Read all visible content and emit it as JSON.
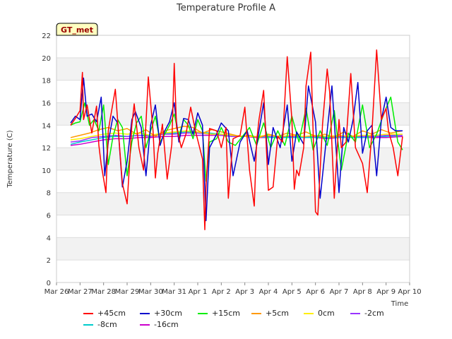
{
  "chart_data": {
    "type": "line",
    "title": "Temperature Profile A",
    "xlabel": "Time",
    "ylabel": "Temperature (C)",
    "ylim": [
      0,
      22
    ],
    "yticks": [
      0,
      2,
      4,
      6,
      8,
      10,
      12,
      14,
      16,
      18,
      20,
      22
    ],
    "xlim": [
      0,
      15
    ],
    "xtick_labels": [
      "Mar 26",
      "Mar 27",
      "Mar 28",
      "Mar 29",
      "Mar 30",
      "Mar 31",
      "Apr 1",
      "Apr 2",
      "Apr 3",
      "Apr 4",
      "Apr 5",
      "Apr 6",
      "Apr 7",
      "Apr 8",
      "Apr 9",
      "Apr 10"
    ],
    "annotation": "GT_met",
    "grid_bands": true,
    "legend_position": "bottom",
    "series": [
      {
        "name": "+45cm",
        "color": "#ff0000",
        "x": [
          0.6,
          0.8,
          1.0,
          1.1,
          1.15,
          1.3,
          1.5,
          1.7,
          1.8,
          1.9,
          2.1,
          2.2,
          2.3,
          2.5,
          2.7,
          2.8,
          3.0,
          3.2,
          3.3,
          3.5,
          3.7,
          3.9,
          4.1,
          4.2,
          4.3,
          4.5,
          4.7,
          4.9,
          5.0,
          5.1,
          5.3,
          5.5,
          5.7,
          5.9,
          6.2,
          6.3,
          6.35,
          6.5,
          6.8,
          7.0,
          7.2,
          7.3,
          7.5,
          7.8,
          8.0,
          8.2,
          8.4,
          8.5,
          8.6,
          8.8,
          9.0,
          9.2,
          9.4,
          9.6,
          9.8,
          10.0,
          10.1,
          10.2,
          10.3,
          10.5,
          10.6,
          10.8,
          11.0,
          11.1,
          11.3,
          11.5,
          11.6,
          11.8,
          12.0,
          12.1,
          12.3,
          12.5,
          12.7,
          13.0,
          13.2,
          13.4,
          13.6,
          13.8,
          14.0,
          14.1,
          14.3,
          14.5,
          14.7
        ],
        "values": [
          14.0,
          14.6,
          15.3,
          18.7,
          14.5,
          15.8,
          13.3,
          15.7,
          12.2,
          10.5,
          8.0,
          13.5,
          14.8,
          17.2,
          11.5,
          8.8,
          7.0,
          14.0,
          15.9,
          12.0,
          10.0,
          18.3,
          13.5,
          9.3,
          11.5,
          14.1,
          9.2,
          12.3,
          19.5,
          13.8,
          12.0,
          13.2,
          15.6,
          13.5,
          11.0,
          4.7,
          8.5,
          13.7,
          13.5,
          12.0,
          13.8,
          7.5,
          12.8,
          13.1,
          15.6,
          10.0,
          6.8,
          12.5,
          14.5,
          17.1,
          8.2,
          8.5,
          13.0,
          12.5,
          20.1,
          14.5,
          8.3,
          10.0,
          9.5,
          12.0,
          17.5,
          20.5,
          6.3,
          6.0,
          14.1,
          19.0,
          17.0,
          7.5,
          14.5,
          12.0,
          12.5,
          18.6,
          12.0,
          10.6,
          8.0,
          13.5,
          20.7,
          14.5,
          15.5,
          13.5,
          12.0,
          9.5,
          13.0
        ]
      },
      {
        "name": "+30cm",
        "color": "#0000cc",
        "x": [
          0.6,
          0.8,
          1.0,
          1.15,
          1.3,
          1.5,
          1.7,
          1.9,
          2.05,
          2.2,
          2.4,
          2.6,
          2.8,
          3.0,
          3.2,
          3.35,
          3.6,
          3.8,
          4.0,
          4.2,
          4.4,
          4.6,
          4.8,
          5.0,
          5.2,
          5.4,
          5.6,
          5.8,
          6.0,
          6.2,
          6.35,
          6.5,
          6.8,
          7.0,
          7.3,
          7.5,
          7.8,
          8.1,
          8.4,
          8.6,
          8.8,
          9.0,
          9.2,
          9.5,
          9.8,
          10.0,
          10.2,
          10.5,
          10.7,
          11.0,
          11.2,
          11.5,
          11.7,
          12.0,
          12.2,
          12.4,
          12.6,
          12.8,
          13.0,
          13.2,
          13.4,
          13.6,
          13.8,
          14.0,
          14.2,
          14.4,
          14.7
        ],
        "values": [
          14.2,
          14.8,
          14.5,
          18.2,
          14.8,
          15.0,
          14.3,
          16.5,
          9.5,
          12.5,
          14.8,
          14.2,
          8.5,
          10.8,
          14.5,
          15.2,
          13.8,
          9.5,
          14.0,
          15.8,
          12.2,
          13.5,
          14.3,
          16.0,
          12.5,
          14.6,
          14.5,
          13.2,
          15.1,
          14.0,
          5.5,
          12.0,
          13.2,
          14.2,
          13.5,
          9.5,
          12.5,
          13.5,
          10.8,
          13.5,
          16.0,
          10.5,
          13.8,
          12.0,
          15.8,
          10.8,
          13.4,
          12.3,
          17.5,
          14.3,
          7.5,
          13.5,
          17.5,
          8.0,
          13.8,
          12.5,
          14.5,
          17.8,
          11.5,
          13.5,
          14.0,
          9.5,
          14.5,
          16.5,
          13.8,
          13.5,
          13.5
        ]
      },
      {
        "name": "+15cm",
        "color": "#00ee00",
        "x": [
          0.6,
          0.8,
          1.0,
          1.2,
          1.4,
          1.6,
          1.8,
          2.0,
          2.2,
          2.4,
          2.6,
          2.8,
          3.0,
          3.2,
          3.4,
          3.6,
          3.8,
          4.0,
          4.2,
          4.4,
          4.6,
          4.8,
          5.0,
          5.2,
          5.4,
          5.6,
          5.8,
          6.0,
          6.2,
          6.35,
          6.5,
          6.8,
          7.0,
          7.3,
          7.6,
          7.9,
          8.2,
          8.5,
          8.8,
          9.1,
          9.4,
          9.7,
          10.0,
          10.3,
          10.6,
          10.9,
          11.2,
          11.5,
          11.8,
          12.1,
          12.4,
          12.7,
          13.0,
          13.3,
          13.6,
          13.9,
          14.2,
          14.5,
          14.7
        ],
        "values": [
          14.0,
          14.2,
          14.3,
          16.0,
          14.0,
          14.5,
          13.5,
          15.8,
          10.5,
          13.0,
          14.5,
          13.8,
          9.5,
          12.5,
          14.2,
          14.8,
          12.0,
          13.5,
          14.8,
          12.5,
          13.2,
          14.0,
          15.0,
          13.0,
          14.5,
          14.0,
          12.8,
          14.5,
          13.5,
          9.0,
          12.5,
          12.8,
          13.8,
          12.5,
          12.2,
          13.0,
          13.8,
          12.2,
          14.2,
          12.0,
          13.5,
          12.2,
          14.8,
          12.5,
          15.5,
          11.8,
          13.5,
          12.2,
          15.3,
          10.0,
          13.3,
          12.5,
          15.8,
          12.0,
          13.2,
          15.0,
          16.5,
          12.5,
          11.8
        ]
      },
      {
        "name": "+5cm",
        "color": "#ff9900",
        "x": [
          0.6,
          1.0,
          1.4,
          1.8,
          2.2,
          2.6,
          3.0,
          3.4,
          3.8,
          4.2,
          4.6,
          5.0,
          5.4,
          5.8,
          6.2,
          6.6,
          7.0,
          7.4,
          7.8,
          8.2,
          8.6,
          9.0,
          9.4,
          9.8,
          10.2,
          10.6,
          11.0,
          11.4,
          11.8,
          12.2,
          12.6,
          13.0,
          13.4,
          13.8,
          14.2,
          14.7
        ],
        "values": [
          12.9,
          13.1,
          13.3,
          13.6,
          13.8,
          13.5,
          13.7,
          13.2,
          13.6,
          13.0,
          13.5,
          13.7,
          13.9,
          13.8,
          13.3,
          13.6,
          13.4,
          13.2,
          13.0,
          13.1,
          12.9,
          13.2,
          13.0,
          13.3,
          13.1,
          13.4,
          13.0,
          13.2,
          12.9,
          13.4,
          13.0,
          13.5,
          13.2,
          13.6,
          13.3,
          13.5
        ]
      },
      {
        "name": "0cm",
        "color": "#ffee00",
        "x": [
          0.6,
          1.0,
          1.5,
          2.0,
          2.5,
          3.0,
          3.5,
          4.0,
          4.5,
          5.0,
          5.5,
          6.0,
          6.5,
          7.0,
          7.5,
          8.0,
          8.5,
          9.0,
          9.5,
          10.0,
          10.5,
          11.0,
          11.5,
          12.0,
          12.5,
          13.0,
          13.5,
          14.0,
          14.7
        ],
        "values": [
          12.7,
          12.8,
          13.0,
          13.2,
          13.3,
          13.2,
          13.3,
          13.1,
          13.3,
          13.4,
          13.5,
          13.4,
          13.2,
          13.2,
          13.1,
          13.0,
          13.0,
          13.1,
          13.0,
          13.1,
          13.0,
          13.1,
          13.0,
          13.1,
          13.0,
          13.1,
          13.1,
          13.2,
          13.2
        ]
      },
      {
        "name": "-2cm",
        "color": "#9933ff",
        "x": [
          0.6,
          1.0,
          1.5,
          2.0,
          2.5,
          3.0,
          3.5,
          4.0,
          4.5,
          5.0,
          5.5,
          6.0,
          6.5,
          7.0,
          7.5,
          8.0,
          8.5,
          9.0,
          9.5,
          10.0,
          10.5,
          11.0,
          11.5,
          12.0,
          12.5,
          13.0,
          13.5,
          14.0,
          14.7
        ],
        "values": [
          12.5,
          12.6,
          12.9,
          13.0,
          13.1,
          13.0,
          13.1,
          13.0,
          13.2,
          13.2,
          13.3,
          13.3,
          13.2,
          13.1,
          13.0,
          13.0,
          13.0,
          13.0,
          13.0,
          13.0,
          13.0,
          13.0,
          13.0,
          13.0,
          13.0,
          13.0,
          13.0,
          13.1,
          13.1
        ]
      },
      {
        "name": "-8cm",
        "color": "#00cccc",
        "x": [
          0.6,
          1.0,
          1.5,
          2.0,
          2.5,
          3.0,
          3.5,
          4.0,
          4.5,
          5.0,
          5.5,
          6.0,
          6.5,
          7.0,
          7.5,
          8.0,
          8.5,
          9.0,
          9.5,
          10.0,
          10.5,
          11.0,
          11.5,
          12.0,
          12.5,
          13.0,
          13.5,
          14.0,
          14.7
        ],
        "values": [
          12.3,
          12.5,
          12.7,
          12.9,
          13.0,
          13.0,
          13.1,
          13.1,
          13.2,
          13.3,
          13.4,
          13.4,
          13.3,
          13.2,
          13.1,
          13.0,
          13.0,
          12.9,
          12.9,
          12.9,
          12.9,
          12.9,
          12.9,
          12.9,
          12.9,
          12.9,
          13.0,
          13.0,
          13.1
        ]
      },
      {
        "name": "-16cm",
        "color": "#cc00cc",
        "x": [
          0.6,
          1.0,
          1.5,
          2.0,
          2.5,
          3.0,
          3.5,
          4.0,
          4.5,
          5.0,
          5.5,
          6.0,
          6.5,
          7.0,
          7.5,
          8.0,
          8.5,
          9.0,
          9.5,
          10.0,
          10.5,
          11.0,
          11.5,
          12.0,
          12.5,
          13.0,
          13.5,
          14.0,
          14.7
        ],
        "values": [
          12.2,
          12.3,
          12.5,
          12.7,
          12.8,
          12.8,
          12.9,
          12.9,
          13.0,
          13.0,
          13.1,
          13.1,
          13.1,
          13.1,
          13.0,
          13.0,
          12.9,
          12.9,
          12.9,
          12.9,
          12.9,
          12.9,
          12.8,
          12.9,
          12.9,
          12.9,
          12.9,
          12.9,
          13.0
        ]
      }
    ]
  }
}
